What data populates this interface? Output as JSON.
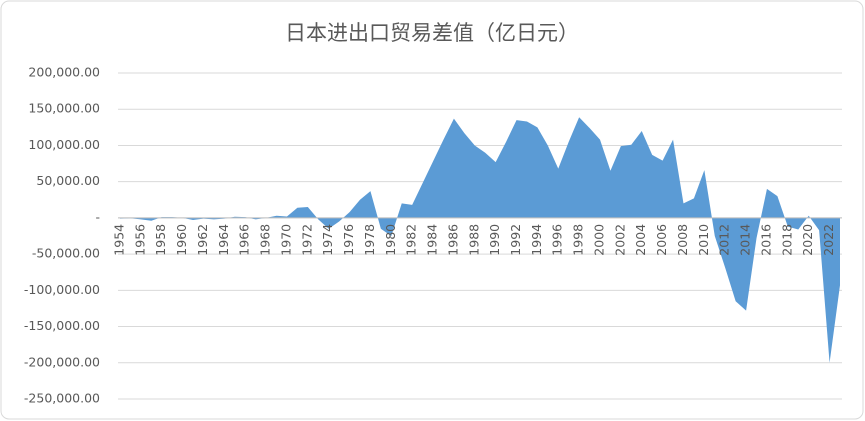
{
  "chart_data": {
    "type": "area",
    "title": "日本进出口贸易差值（亿日元）",
    "categories": [
      "1954",
      null,
      "1956",
      null,
      "1958",
      null,
      "1960",
      null,
      "1962",
      null,
      "1964",
      null,
      "1966",
      null,
      "1968",
      null,
      "1970",
      null,
      "1972",
      null,
      "1974",
      null,
      "1976",
      null,
      "1978",
      null,
      "1980",
      null,
      "1982",
      null,
      "1984",
      null,
      "1986",
      null,
      "1988",
      null,
      "1990",
      null,
      "1992",
      null,
      "1994",
      null,
      "1996",
      null,
      "1998",
      null,
      "2000",
      null,
      "2002",
      null,
      "2004",
      null,
      "2006",
      null,
      "2008",
      null,
      "2010",
      null,
      "2012",
      null,
      "2014",
      null,
      "2016",
      null,
      "2018",
      null,
      "2020",
      null,
      "2022",
      null
    ],
    "values": [
      -1000,
      -500,
      -2000,
      -4000,
      1000,
      1000,
      0,
      -3000,
      -1000,
      -2000,
      -1000,
      1500,
      1000,
      -2000,
      0,
      3000,
      2000,
      14000,
      15000,
      -2000,
      -15000,
      -5000,
      8000,
      25000,
      37000,
      -15000,
      -25000,
      20000,
      18000,
      48000,
      78000,
      108000,
      137000,
      117000,
      100000,
      90000,
      77000,
      105000,
      135000,
      133000,
      125000,
      100000,
      68000,
      105000,
      139000,
      124000,
      108000,
      65000,
      99000,
      101000,
      120000,
      87000,
      79000,
      108000,
      20000,
      27000,
      66000,
      -25000,
      -69000,
      -115000,
      -128000,
      -28000,
      40000,
      30000,
      -12000,
      -16000,
      3000,
      -17000,
      -200000,
      -93000
    ],
    "color": "#5b9bd5",
    "ylim": [
      -250000,
      200000
    ],
    "yticks": [
      {
        "value": -250000,
        "label": "-250,000.00"
      },
      {
        "value": -200000,
        "label": "-200,000.00"
      },
      {
        "value": -150000,
        "label": "-150,000.00"
      },
      {
        "value": -100000,
        "label": "-100,000.00"
      },
      {
        "value": -50000,
        "label": "-50,000.00"
      },
      {
        "value": 0,
        "label": "-"
      },
      {
        "value": 50000,
        "label": "50,000.00"
      },
      {
        "value": 100000,
        "label": "100,000.00"
      },
      {
        "value": 150000,
        "label": "150,000.00"
      },
      {
        "value": 200000,
        "label": "200,000.00"
      }
    ],
    "grid": true
  }
}
